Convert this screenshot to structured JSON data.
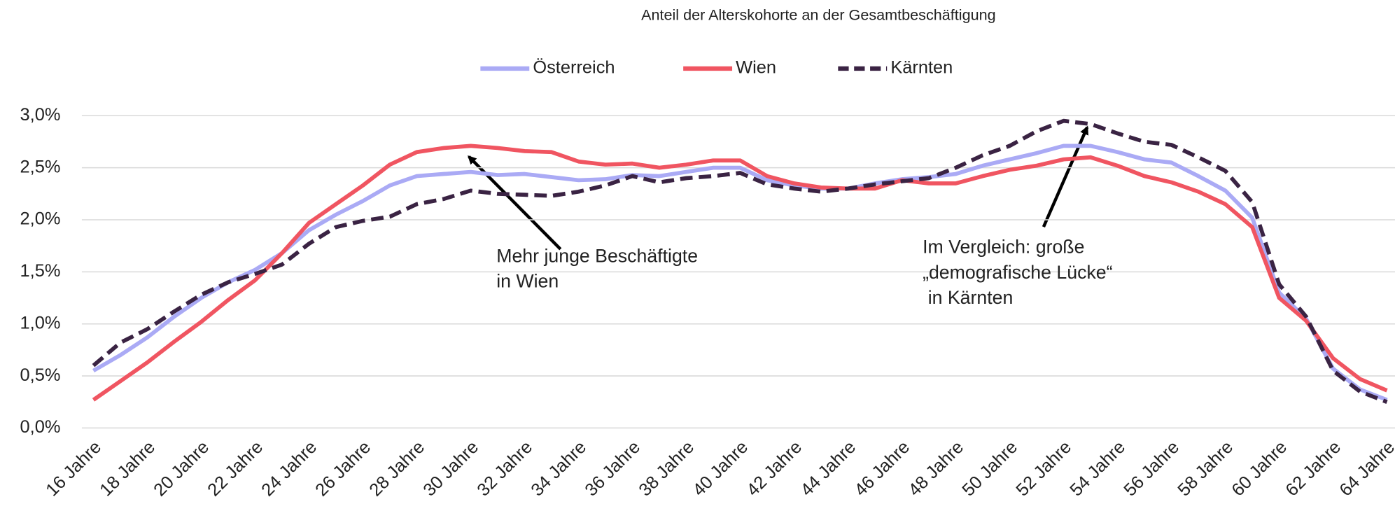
{
  "chart_data": {
    "type": "line",
    "title": "Anteil der Alterskohorte an der Gesamtbeschäftigung",
    "categories": [
      "16 Jahre",
      null,
      "18 Jahre",
      null,
      "20 Jahre",
      null,
      "22 Jahre",
      null,
      "24 Jahre",
      null,
      "26 Jahre",
      null,
      "28 Jahre",
      null,
      "30 Jahre",
      null,
      "32 Jahre",
      null,
      "34 Jahre",
      null,
      "36 Jahre",
      null,
      "38 Jahre",
      null,
      "40 Jahre",
      null,
      "42 Jahre",
      null,
      "44 Jahre",
      null,
      "46 Jahre",
      null,
      "48 Jahre",
      null,
      "50 Jahre",
      null,
      "52 Jahre",
      null,
      "54 Jahre",
      null,
      "56 Jahre",
      null,
      "58 Jahre",
      null,
      "60 Jahre",
      null,
      "62 Jahre",
      null,
      "64 Jahre"
    ],
    "series": [
      {
        "name": "Österreich",
        "color": "#aaaaf5",
        "dashed": false,
        "values": [
          0.55,
          0.7,
          0.87,
          1.07,
          1.25,
          1.4,
          1.52,
          1.68,
          1.9,
          2.05,
          2.18,
          2.33,
          2.42,
          2.44,
          2.46,
          2.43,
          2.44,
          2.41,
          2.38,
          2.39,
          2.43,
          2.42,
          2.46,
          2.5,
          2.5,
          2.38,
          2.33,
          2.3,
          2.3,
          2.35,
          2.39,
          2.41,
          2.44,
          2.52,
          2.58,
          2.64,
          2.71,
          2.71,
          2.65,
          2.58,
          2.55,
          2.42,
          2.28,
          2.02,
          1.3,
          1.05,
          0.57,
          0.37,
          0.27
        ]
      },
      {
        "name": "Wien",
        "color": "#f05561",
        "dashed": false,
        "values": [
          0.27,
          0.45,
          0.63,
          0.83,
          1.02,
          1.23,
          1.42,
          1.68,
          1.97,
          2.15,
          2.33,
          2.53,
          2.65,
          2.69,
          2.71,
          2.69,
          2.66,
          2.65,
          2.56,
          2.53,
          2.54,
          2.5,
          2.53,
          2.57,
          2.57,
          2.42,
          2.35,
          2.31,
          2.3,
          2.3,
          2.38,
          2.35,
          2.35,
          2.42,
          2.48,
          2.52,
          2.58,
          2.6,
          2.52,
          2.42,
          2.36,
          2.27,
          2.15,
          1.93,
          1.25,
          1.03,
          0.67,
          0.47,
          0.36
        ]
      },
      {
        "name": "Kärnten",
        "color": "#3a2343",
        "dashed": true,
        "values": [
          0.6,
          0.82,
          0.95,
          1.12,
          1.28,
          1.4,
          1.48,
          1.57,
          1.77,
          1.93,
          1.99,
          2.03,
          2.15,
          2.2,
          2.28,
          2.25,
          2.24,
          2.23,
          2.27,
          2.33,
          2.42,
          2.36,
          2.4,
          2.42,
          2.45,
          2.34,
          2.3,
          2.27,
          2.3,
          2.34,
          2.37,
          2.4,
          2.5,
          2.62,
          2.71,
          2.85,
          2.95,
          2.92,
          2.83,
          2.75,
          2.72,
          2.6,
          2.47,
          2.17,
          1.38,
          1.07,
          0.55,
          0.35,
          0.25
        ]
      }
    ],
    "ylim": [
      0,
      3
    ],
    "yticks": [
      {
        "value": 0,
        "label": "0,0%"
      },
      {
        "value": 0.5,
        "label": "0,5%"
      },
      {
        "value": 1,
        "label": "1,0%"
      },
      {
        "value": 1.5,
        "label": "1,5%"
      },
      {
        "value": 2,
        "label": "2,0%"
      },
      {
        "value": 2.5,
        "label": "2,5%"
      },
      {
        "value": 3,
        "label": "3,0%"
      }
    ],
    "grid": true,
    "legend": "top",
    "annotations": [
      {
        "lines": [
          "Mehr junge Beschäftigte",
          "in Wien"
        ]
      },
      {
        "lines": [
          "Im Vergleich: große",
          "„demografische Lücke“",
          "in Kärnten"
        ]
      }
    ]
  }
}
